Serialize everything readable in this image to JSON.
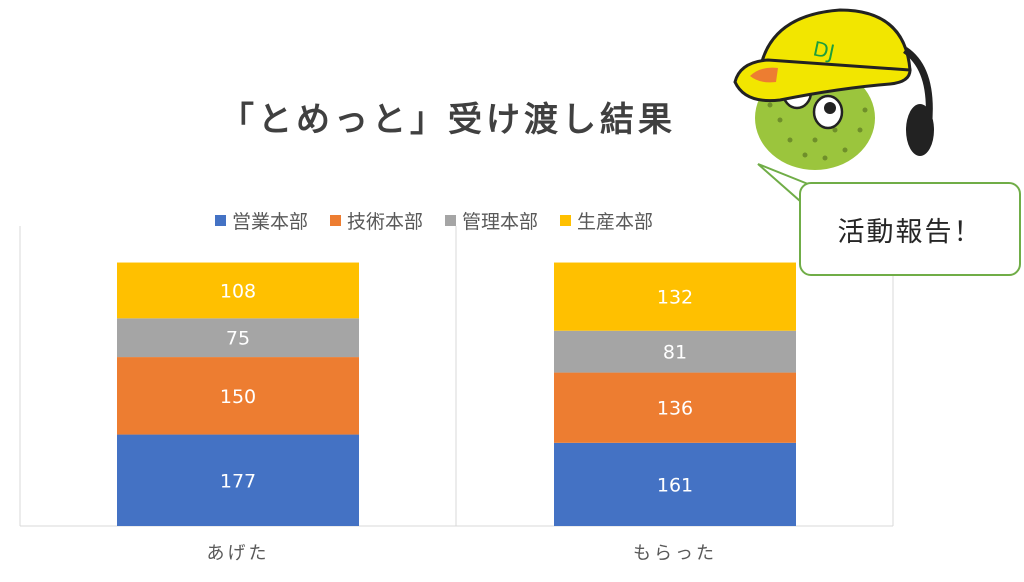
{
  "title": "「とめっと」受け渡し結果",
  "bubble_text": "活動報告！",
  "mascot_cap_text": "DJ",
  "colors": {
    "series": [
      "#4472c4",
      "#ed7d31",
      "#a5a5a5",
      "#ffc000"
    ],
    "axis": "#d9d9d9",
    "label_text": "#ffffff",
    "bubble_border": "#70ad47",
    "mascot_cap": "#f2e600",
    "mascot_body": "#9bc53d"
  },
  "chart_data": {
    "type": "bar",
    "stacked": true,
    "categories": [
      "あげた",
      "もらった"
    ],
    "series": [
      {
        "name": "営業本部",
        "values": [
          177,
          161
        ]
      },
      {
        "name": "技術本部",
        "values": [
          150,
          136
        ]
      },
      {
        "name": "管理本部",
        "values": [
          75,
          81
        ]
      },
      {
        "name": "生産本部",
        "values": [
          108,
          132
        ]
      }
    ],
    "title": "「とめっと」受け渡し結果",
    "legend": "top",
    "grid": false,
    "ylim": [
      0,
      600
    ]
  }
}
